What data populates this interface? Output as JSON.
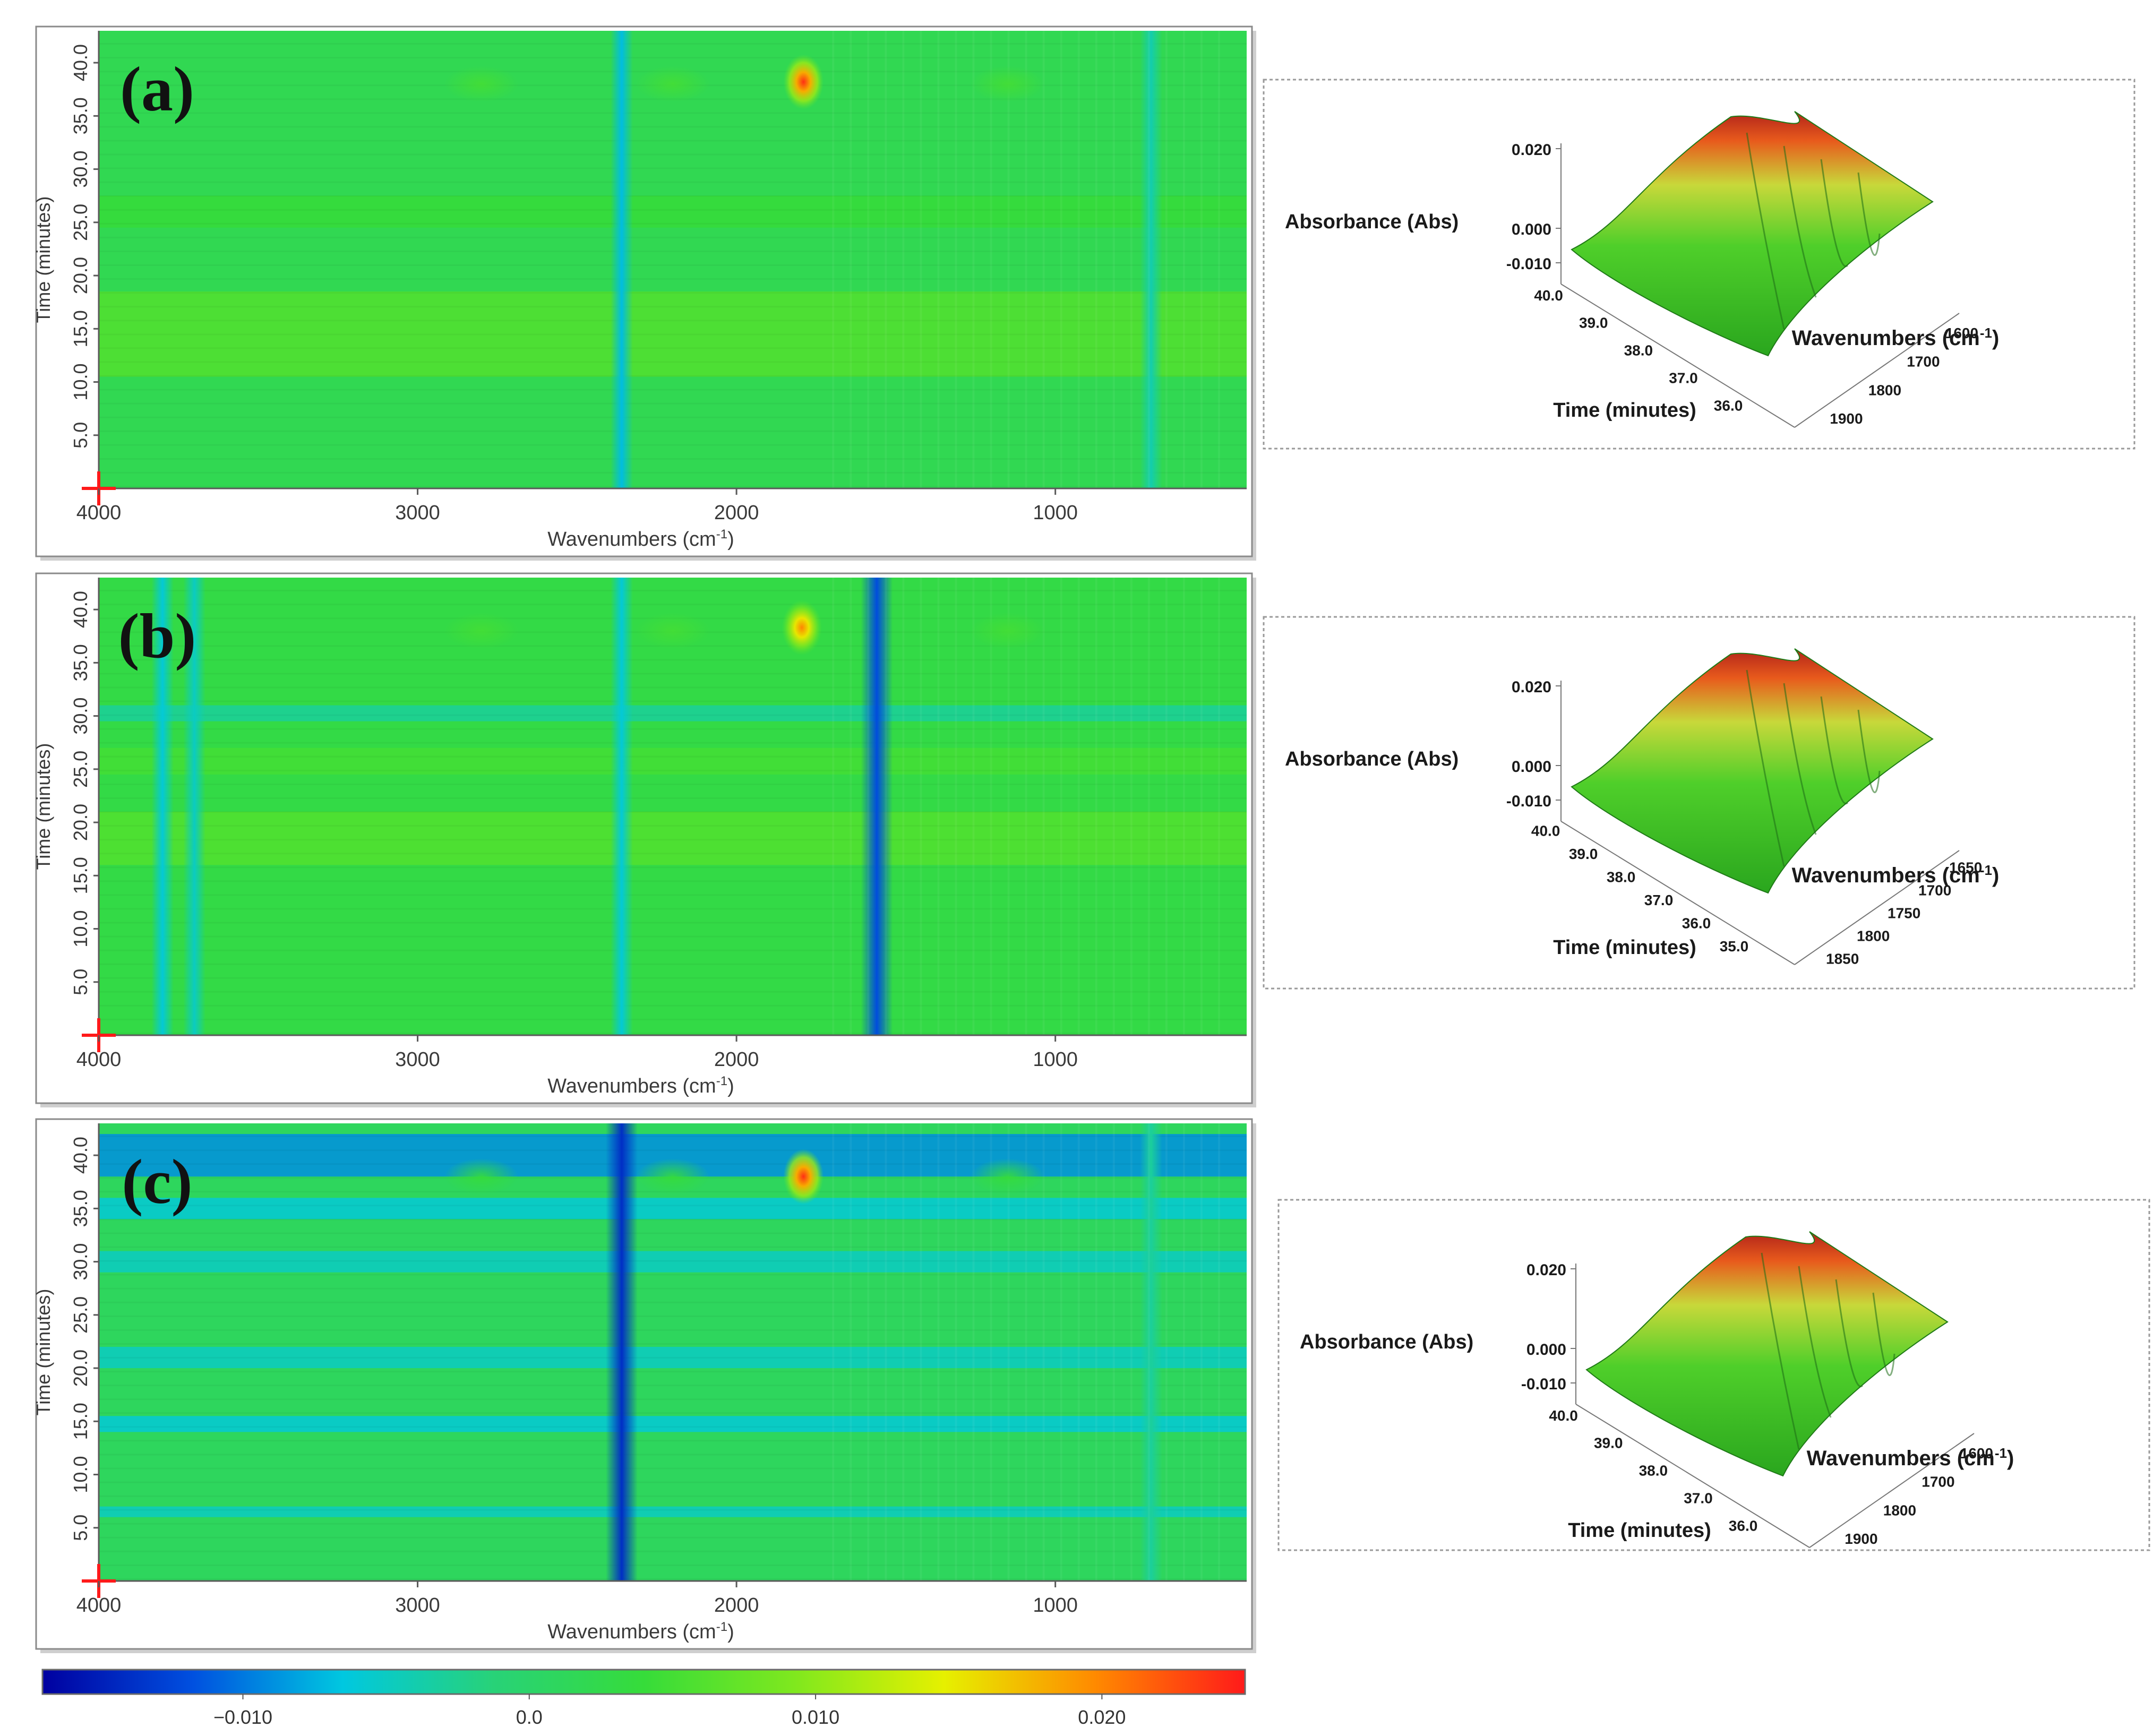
{
  "figure": {
    "x_ticks": [
      "4000",
      "3000",
      "2000",
      "1000"
    ],
    "y_ticks": [
      "5.0",
      "10.0",
      "15.0",
      "20.0",
      "25.0",
      "30.0",
      "35.0",
      "40.0"
    ],
    "x_label": "Wavenumbers (cm",
    "x_label_sup": "-1",
    "x_label_close": ")",
    "y_label": "Time (minutes)"
  },
  "colors": {
    "scale": [
      "#0000a0",
      "#0050e0",
      "#00c8e0",
      "#28d278",
      "#36dc3a",
      "#7fe81e",
      "#e6f000",
      "#ff8a00",
      "#ff1a1a"
    ],
    "frame": "#8a8a8a"
  },
  "chart_data": [
    {
      "type": "heatmap",
      "panel": "(a)",
      "xlabel": "Wavenumbers (cm-1)",
      "ylabel": "Time (minutes)",
      "xlim": [
        4000,
        400
      ],
      "ylim": [
        0,
        43
      ],
      "x_ticks": [
        4000,
        3000,
        2000,
        1000
      ],
      "y_ticks": [
        5.0,
        10.0,
        15.0,
        20.0,
        25.0,
        30.0,
        35.0,
        40.0
      ],
      "baseline": 0.002,
      "hotspots": [
        {
          "wavenumber": 1790,
          "time": 38.2,
          "value": 0.024
        },
        {
          "wavenumber": 2800,
          "time": 38.0,
          "value": 0.005
        },
        {
          "wavenumber": 2200,
          "time": 38.0,
          "value": 0.005
        },
        {
          "wavenumber": 1150,
          "time": 38.0,
          "value": 0.005
        }
      ],
      "bands": [
        {
          "wavenumber": 2360,
          "value": -0.007
        },
        {
          "wavenumber": 700,
          "value": -0.004
        }
      ],
      "stripes": [
        {
          "time_from": 10.5,
          "time_to": 18.5,
          "value": 0.006
        },
        {
          "time_from": 24.5,
          "time_to": 27.5,
          "value": 0.004
        }
      ],
      "inset": {
        "type": "surface",
        "zlabel": "Absorbance (Abs)",
        "z_ticks": [
          "0.020",
          "0.000",
          "-0.010"
        ],
        "ylabel": "Time (minutes)",
        "time_ticks": [
          "40.0",
          "39.0",
          "38.0",
          "37.0",
          "36.0"
        ],
        "xlabel": "Wavenumbers (cm",
        "xlabel_sup": "-1",
        "xlabel_close": ")",
        "wn_ticks": [
          "1600",
          "1700",
          "1800",
          "1900"
        ],
        "peak": {
          "wavenumber": 1790,
          "time": 38.2,
          "value": 0.024
        }
      }
    },
    {
      "type": "heatmap",
      "panel": "(b)",
      "xlabel": "Wavenumbers (cm-1)",
      "ylabel": "Time (minutes)",
      "xlim": [
        4000,
        400
      ],
      "ylim": [
        0,
        43
      ],
      "x_ticks": [
        4000,
        3000,
        2000,
        1000
      ],
      "y_ticks": [
        5.0,
        10.0,
        15.0,
        20.0,
        25.0,
        30.0,
        35.0,
        40.0
      ],
      "baseline": 0.003,
      "hotspots": [
        {
          "wavenumber": 1795,
          "time": 38.3,
          "value": 0.02
        },
        {
          "wavenumber": 2800,
          "time": 38.0,
          "value": 0.005
        },
        {
          "wavenumber": 2200,
          "time": 38.0,
          "value": 0.005
        },
        {
          "wavenumber": 1150,
          "time": 38.0,
          "value": 0.005
        }
      ],
      "bands": [
        {
          "wavenumber": 2360,
          "value": -0.006
        },
        {
          "wavenumber": 1560,
          "value": -0.012
        },
        {
          "wavenumber": 3800,
          "value": -0.006
        },
        {
          "wavenumber": 3700,
          "value": -0.005
        }
      ],
      "stripes": [
        {
          "time_from": 16.0,
          "time_to": 21.0,
          "value": 0.006
        },
        {
          "time_from": 24.5,
          "time_to": 27.0,
          "value": 0.005
        },
        {
          "time_from": 29.5,
          "time_to": 31.0,
          "value": -0.003
        }
      ],
      "inset": {
        "type": "surface",
        "zlabel": "Absorbance (Abs)",
        "z_ticks": [
          "0.020",
          "0.000",
          "-0.010"
        ],
        "ylabel": "Time (minutes)",
        "time_ticks": [
          "40.0",
          "39.0",
          "38.0",
          "37.0",
          "36.0",
          "35.0"
        ],
        "xlabel": "Wavenumbers (cm",
        "xlabel_sup": "-1",
        "xlabel_close": ")",
        "wn_ticks": [
          "1650",
          "1700",
          "1750",
          "1800",
          "1850"
        ],
        "peak": {
          "wavenumber": 1795,
          "time": 38.3,
          "value": 0.02
        }
      }
    },
    {
      "type": "heatmap",
      "panel": "(c)",
      "xlabel": "Wavenumbers (cm-1)",
      "ylabel": "Time (minutes)",
      "xlim": [
        4000,
        400
      ],
      "ylim": [
        0,
        43
      ],
      "x_ticks": [
        4000,
        3000,
        2000,
        1000
      ],
      "y_ticks": [
        5.0,
        10.0,
        15.0,
        20.0,
        25.0,
        30.0,
        35.0,
        40.0
      ],
      "baseline": 0.001,
      "hotspots": [
        {
          "wavenumber": 1790,
          "time": 38.0,
          "value": 0.024
        },
        {
          "wavenumber": 2800,
          "time": 38.0,
          "value": 0.004
        },
        {
          "wavenumber": 2200,
          "time": 38.0,
          "value": 0.004
        },
        {
          "wavenumber": 1150,
          "time": 38.0,
          "value": 0.004
        }
      ],
      "bands": [
        {
          "wavenumber": 2360,
          "value": -0.014
        },
        {
          "wavenumber": 700,
          "value": -0.003
        }
      ],
      "stripes": [
        {
          "time_from": 38.0,
          "time_to": 42.0,
          "value": -0.009
        },
        {
          "time_from": 34.0,
          "time_to": 36.0,
          "value": -0.006
        },
        {
          "time_from": 29.0,
          "time_to": 31.0,
          "value": -0.005
        },
        {
          "time_from": 20.0,
          "time_to": 22.0,
          "value": -0.005
        },
        {
          "time_from": 14.0,
          "time_to": 15.5,
          "value": -0.006
        },
        {
          "time_from": 6.0,
          "time_to": 7.0,
          "value": -0.005
        }
      ],
      "inset": {
        "type": "surface",
        "zlabel": "Absorbance (Abs)",
        "z_ticks": [
          "0.020",
          "0.000",
          "-0.010"
        ],
        "ylabel": "Time (minutes)",
        "time_ticks": [
          "40.0",
          "39.0",
          "38.0",
          "37.0",
          "36.0"
        ],
        "xlabel": "Wavenumbers (cm",
        "xlabel_sup": "-1",
        "xlabel_close": ")",
        "wn_ticks": [
          "1600",
          "1700",
          "1800",
          "1900"
        ],
        "peak": {
          "wavenumber": 1790,
          "time": 38.0,
          "value": 0.024
        }
      }
    },
    {
      "type": "colorbar",
      "range": [
        -0.017,
        0.025
      ],
      "tick_values": [
        -0.01,
        0.0,
        0.01,
        0.02
      ],
      "tick_labels": [
        "−0.010",
        "0.0",
        "0.010",
        "0.020"
      ]
    }
  ]
}
